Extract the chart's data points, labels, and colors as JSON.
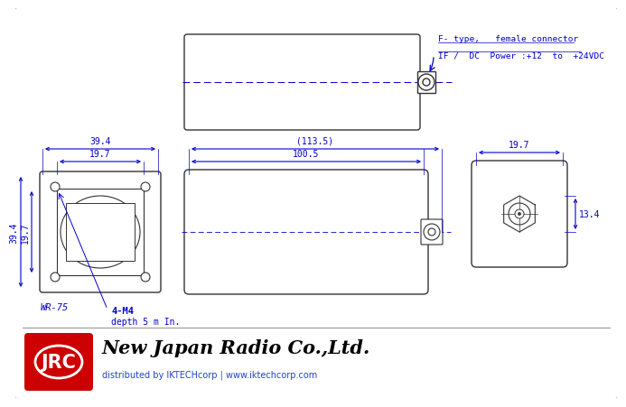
{
  "bg_color": "#ffffff",
  "draw_color": "#0000cc",
  "body_color": "#333333",
  "red_color": "#cc0000",
  "dark_color": "#000000",
  "title_company": "New Japan Radio Co.,Ltd.",
  "title_dist": "distributed by IKTECHcorp | www.iktechcorp.com",
  "jrc_text": "JRC",
  "connector_label1": "F- type,   female connector",
  "connector_label2": "IF /  DC  Power :+12  to  +24VDC",
  "dim_39_4_w": "39.4",
  "dim_19_7_w": "19.7",
  "dim_39_4_h": "39.4",
  "dim_19_7_h": "19.7",
  "dim_113_5": "(113.5)",
  "dim_100_5": "100.5",
  "dim_19_7_r": "19.7",
  "dim_13_4": "13.4",
  "wr75": "WR-75",
  "m4": "4-M4",
  "depth": "depth 5 m In."
}
